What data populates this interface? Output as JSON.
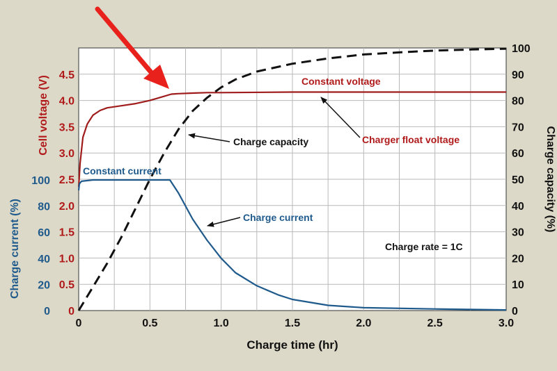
{
  "chart_data": {
    "type": "line",
    "xlabel": "Charge time (hr)",
    "x_ticks": [
      "0",
      "0.5",
      "1.0",
      "1.5",
      "2.0",
      "2.5",
      "3.0"
    ],
    "xlim": [
      0,
      3
    ],
    "y_left_outer": {
      "label": "Charge current (%)",
      "ticks": [
        "0",
        "20",
        "40",
        "60",
        "80",
        "100"
      ],
      "ylim": [
        0,
        100
      ],
      "color": "#1f5a8c"
    },
    "y_left_inner": {
      "label": "Cell voltage (V)",
      "ticks": [
        "0",
        "0.5",
        "1.0",
        "1.5",
        "2.0",
        "2.5",
        "3.0",
        "3.5",
        "4.0",
        "4.5"
      ],
      "ylim": [
        0,
        5
      ],
      "color": "#b01a1a"
    },
    "y_right": {
      "label": "Charge capacity (%)",
      "ticks": [
        "0",
        "10",
        "20",
        "30",
        "40",
        "50",
        "60",
        "70",
        "80",
        "90",
        "100"
      ],
      "ylim": [
        0,
        100
      ],
      "color": "#111111"
    },
    "grid": true,
    "series": [
      {
        "axis": "voltage",
        "color": "#a01c1c",
        "dash": false,
        "x": [
          0,
          0.01,
          0.03,
          0.06,
          0.1,
          0.15,
          0.2,
          0.3,
          0.4,
          0.5,
          0.55,
          0.6,
          0.65,
          0.7,
          0.8,
          0.9,
          1.0,
          1.5,
          2.0,
          2.5,
          3.0
        ],
        "values": [
          2.35,
          2.8,
          3.3,
          3.55,
          3.72,
          3.81,
          3.86,
          3.9,
          3.94,
          4.0,
          4.04,
          4.08,
          4.12,
          4.13,
          4.14,
          4.15,
          4.15,
          4.16,
          4.16,
          4.16,
          4.16
        ]
      },
      {
        "axis": "current",
        "color": "#1f5a8c",
        "dash": false,
        "x": [
          0,
          0.005,
          0.02,
          0.1,
          0.2,
          0.4,
          0.64,
          0.7,
          0.8,
          0.9,
          1.0,
          1.1,
          1.25,
          1.4,
          1.5,
          1.75,
          2.0,
          2.5,
          3.0
        ],
        "values": [
          92,
          97,
          99,
          100,
          100,
          100,
          100,
          90,
          70,
          54,
          40,
          29,
          19,
          12,
          8.5,
          4,
          2.2,
          1.2,
          0.5
        ]
      },
      {
        "axis": "capacity",
        "color": "#111111",
        "dash": true,
        "x": [
          0,
          0.1,
          0.2,
          0.3,
          0.4,
          0.5,
          0.6,
          0.7,
          0.8,
          0.9,
          1.0,
          1.1,
          1.25,
          1.5,
          1.75,
          2.0,
          2.25,
          2.5,
          2.75,
          3.0
        ],
        "values": [
          0,
          9,
          18,
          28,
          39,
          50,
          60,
          69,
          76,
          81,
          85,
          88,
          91,
          94,
          96,
          97.5,
          98.3,
          99,
          99.4,
          99.7
        ]
      }
    ],
    "annotations": [
      {
        "text": "Constant current",
        "color": "#1f5a8c"
      },
      {
        "text": "Constant voltage",
        "color": "#b01a1a"
      },
      {
        "text": "Charge capacity",
        "color": "#111111"
      },
      {
        "text": "Charger float voltage",
        "color": "#b01a1a"
      },
      {
        "text": "Charge current",
        "color": "#1f5a8c"
      },
      {
        "text": "Charge rate = 1C",
        "color": "#111111"
      }
    ],
    "pointer_arrow_color": "#e8211c"
  }
}
